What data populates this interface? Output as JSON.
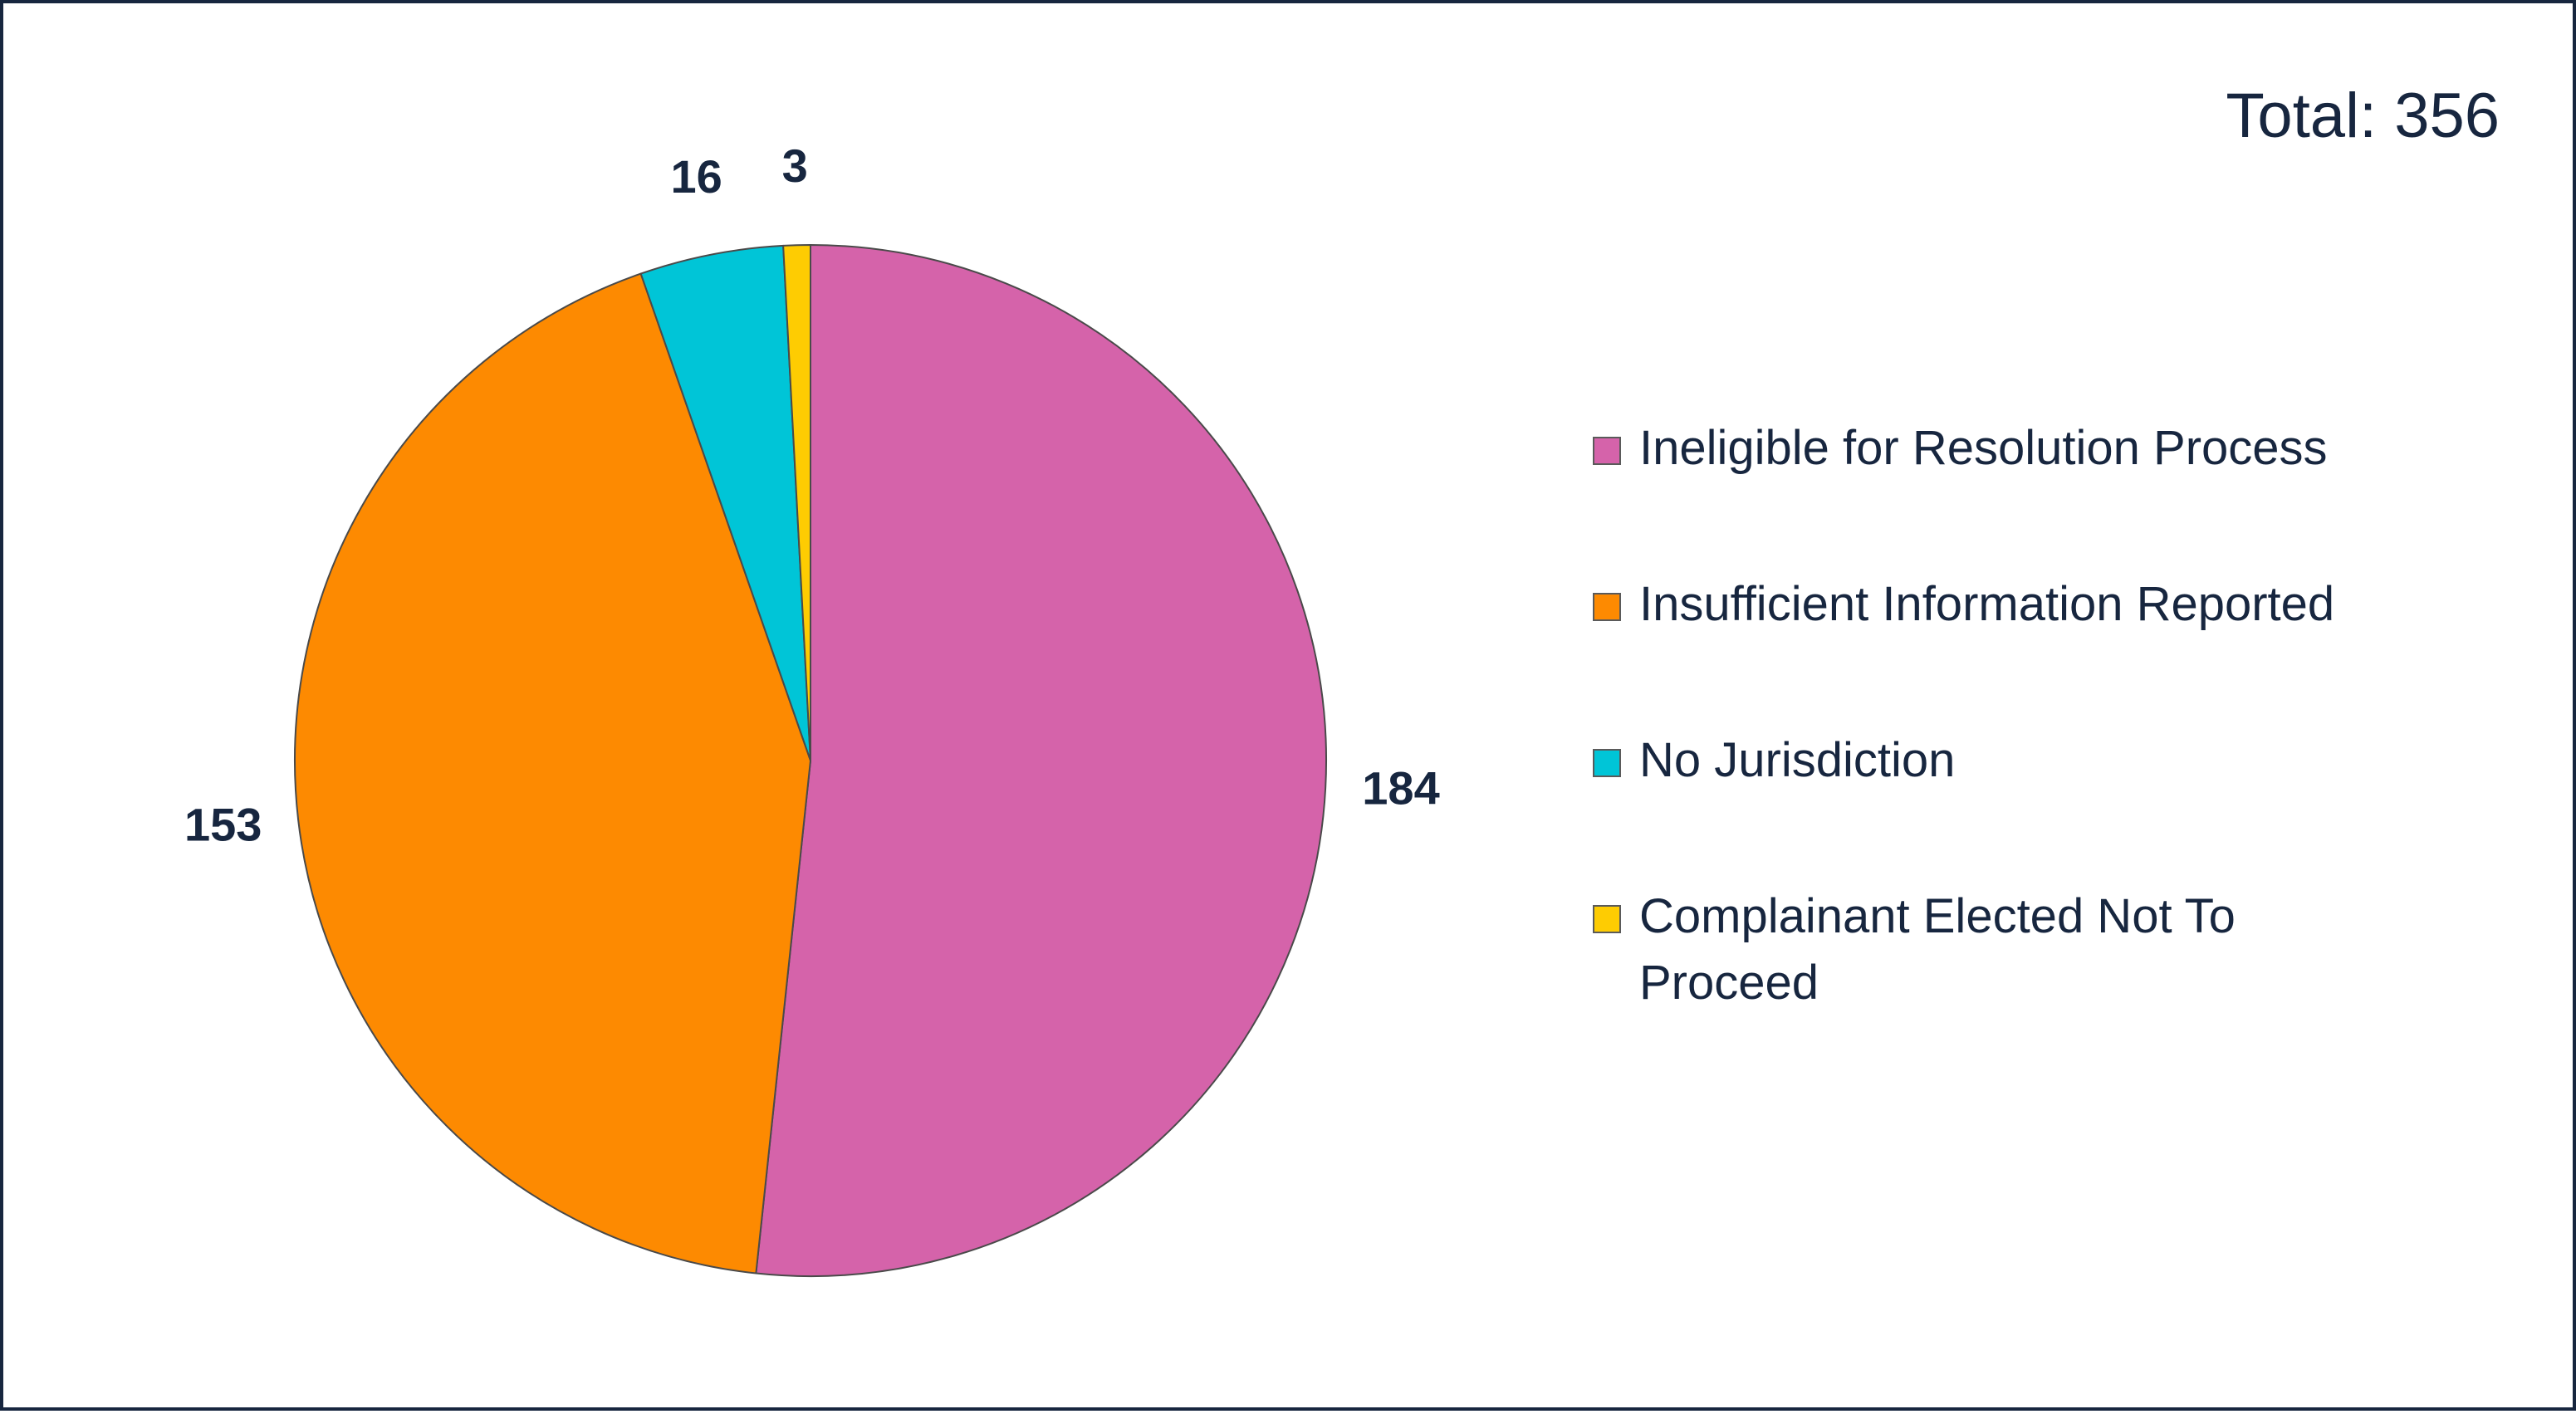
{
  "total_label": "Total: 356",
  "chart_data": {
    "type": "pie",
    "title": "",
    "total": 356,
    "start_angle_deg": 0,
    "direction": "clockwise",
    "legend_position": "right",
    "slices": [
      {
        "label": "Ineligible for Resolution Process",
        "value": 184,
        "display": "184",
        "color": "#d563aa"
      },
      {
        "label": "Insufficient Information Reported",
        "value": 153,
        "display": "153",
        "color": "#fd8a01"
      },
      {
        "label": "No Jurisdiction",
        "value": 16,
        "display": "16",
        "color": "#00c5d7"
      },
      {
        "label": "Complainant Elected Not To Proceed",
        "value": 3,
        "display": "3",
        "color": "#fecc02"
      }
    ]
  }
}
